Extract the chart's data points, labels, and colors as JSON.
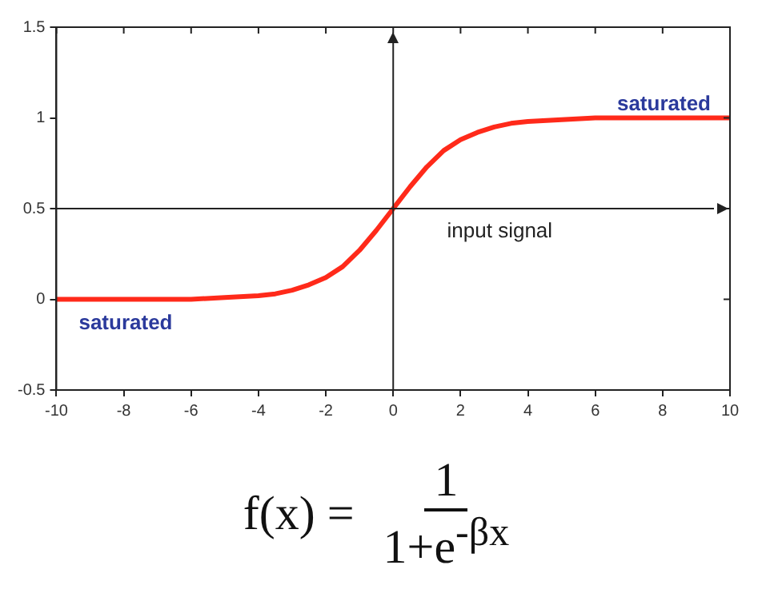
{
  "chart_data": {
    "type": "line",
    "x": [
      -10,
      -9,
      -8,
      -7,
      -6,
      -5,
      -4,
      -3.5,
      -3,
      -2.5,
      -2,
      -1.5,
      -1,
      -0.5,
      0,
      0.5,
      1,
      1.5,
      2,
      2.5,
      3,
      3.5,
      4,
      5,
      6,
      7,
      8,
      9,
      10
    ],
    "series": [
      {
        "color": "#ff2a1a",
        "values": [
          0,
          0,
          0,
          0,
          0,
          0.01,
          0.02,
          0.03,
          0.05,
          0.08,
          0.12,
          0.18,
          0.27,
          0.38,
          0.5,
          0.62,
          0.73,
          0.82,
          0.88,
          0.92,
          0.95,
          0.97,
          0.98,
          0.99,
          1,
          1,
          1,
          1,
          1
        ]
      }
    ],
    "xlim": [
      -10,
      10
    ],
    "xticks": [
      -10,
      -8,
      -6,
      -4,
      -2,
      0,
      2,
      4,
      6,
      8,
      10
    ],
    "ylim": [
      -0.5,
      1.5
    ],
    "yticks": [
      -0.5,
      0,
      0.5,
      1,
      1.5
    ],
    "grid": false,
    "legend": false,
    "marker": "none",
    "line_style": "solid",
    "ref_lines": [
      {
        "axis": "x",
        "value": 0
      },
      {
        "axis": "y",
        "value": 0.5,
        "label": "input signal"
      }
    ],
    "annotations": [
      "saturated",
      "saturated",
      "f(x) =",
      "1",
      "1+e$^{-βx}$"
    ]
  }
}
